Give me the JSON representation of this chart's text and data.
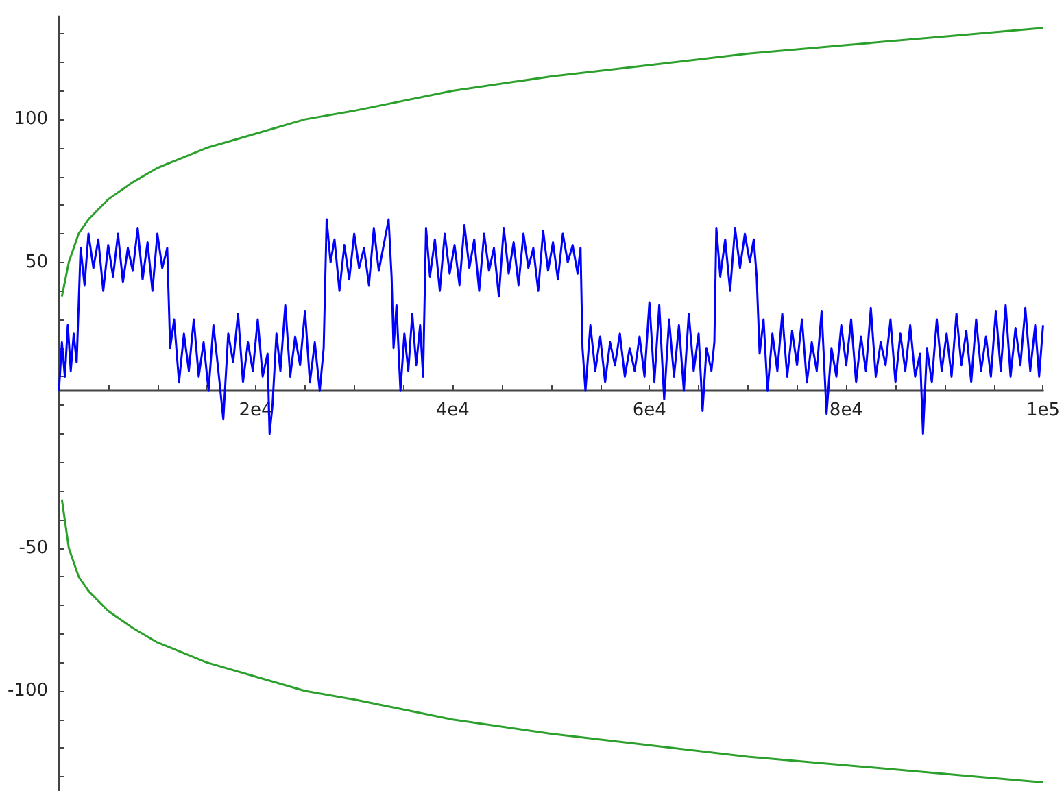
{
  "chart_data": {
    "type": "line",
    "marker": "none",
    "xlim": [
      0,
      100000
    ],
    "ylim": [
      -135,
      136
    ],
    "xticks": [
      {
        "value": 0,
        "label": null
      },
      {
        "value": 5000,
        "label": null
      },
      {
        "value": 10000,
        "label": null
      },
      {
        "value": 15000,
        "label": null
      },
      {
        "value": 20000,
        "label": "2e4"
      },
      {
        "value": 25000,
        "label": null
      },
      {
        "value": 30000,
        "label": null
      },
      {
        "value": 35000,
        "label": null
      },
      {
        "value": 40000,
        "label": "4e4"
      },
      {
        "value": 45000,
        "label": null
      },
      {
        "value": 50000,
        "label": null
      },
      {
        "value": 55000,
        "label": null
      },
      {
        "value": 60000,
        "label": "6e4"
      },
      {
        "value": 65000,
        "label": null
      },
      {
        "value": 70000,
        "label": null
      },
      {
        "value": 75000,
        "label": null
      },
      {
        "value": 80000,
        "label": "8e4"
      },
      {
        "value": 85000,
        "label": null
      },
      {
        "value": 90000,
        "label": null
      },
      {
        "value": 95000,
        "label": null
      },
      {
        "value": 100000,
        "label": "1e5"
      }
    ],
    "yticks": [
      {
        "value": -130,
        "label": null
      },
      {
        "value": -120,
        "label": null
      },
      {
        "value": -110,
        "label": null
      },
      -100,
      {
        "value": -90,
        "label": null
      },
      {
        "value": -80,
        "label": null
      },
      {
        "value": -70,
        "label": null
      },
      {
        "value": -60,
        "label": null
      },
      -50,
      {
        "value": -40,
        "label": null
      },
      {
        "value": -30,
        "label": null
      },
      {
        "value": -20,
        "label": null
      },
      {
        "value": -10,
        "label": null
      },
      {
        "value": 0,
        "label": null
      },
      {
        "value": 10,
        "label": null
      },
      {
        "value": 20,
        "label": null
      },
      {
        "value": 30,
        "label": null
      },
      {
        "value": 40,
        "label": null
      },
      50,
      {
        "value": 60,
        "label": null
      },
      {
        "value": 70,
        "label": null
      },
      {
        "value": 80,
        "label": null
      },
      {
        "value": 90,
        "label": null
      },
      100,
      {
        "value": 110,
        "label": null
      },
      {
        "value": 120,
        "label": null
      },
      {
        "value": 130,
        "label": null
      }
    ],
    "series": [
      {
        "color": "#0000ff",
        "x": [
          0,
          300,
          600,
          900,
          1200,
          1500,
          1800,
          2200,
          2600,
          3000,
          3500,
          4000,
          4500,
          5000,
          5500,
          6000,
          6500,
          7000,
          7500,
          8000,
          8500,
          9000,
          9500,
          10000,
          10500,
          11000,
          11300,
          11700,
          12200,
          12700,
          13200,
          13700,
          14200,
          14700,
          15200,
          15700,
          16200,
          16700,
          17200,
          17700,
          18200,
          18700,
          19200,
          19700,
          20200,
          20700,
          21200,
          21400,
          21700,
          22100,
          22500,
          23000,
          23500,
          24000,
          24500,
          25000,
          25500,
          26000,
          26500,
          26900,
          27200,
          27600,
          28000,
          28500,
          29000,
          29500,
          30000,
          30500,
          31000,
          31500,
          32000,
          32500,
          33000,
          33500,
          33800,
          34000,
          34300,
          34700,
          35100,
          35500,
          35900,
          36300,
          36700,
          37000,
          37300,
          37700,
          38200,
          38700,
          39200,
          39700,
          40200,
          40700,
          41200,
          41700,
          42200,
          42700,
          43200,
          43700,
          44200,
          44700,
          45200,
          45700,
          46200,
          46700,
          47200,
          47700,
          48200,
          48700,
          49200,
          49700,
          50200,
          50700,
          51200,
          51700,
          52200,
          52700,
          53000,
          53200,
          53500,
          54000,
          54500,
          55000,
          55500,
          56000,
          56500,
          57000,
          57500,
          58000,
          58500,
          59000,
          59500,
          60000,
          60500,
          61000,
          61500,
          62000,
          62500,
          63000,
          63500,
          64000,
          64500,
          65000,
          65400,
          65800,
          66300,
          66600,
          66800,
          67200,
          67700,
          68200,
          68700,
          69200,
          69700,
          70200,
          70600,
          70900,
          71200,
          71600,
          72000,
          72500,
          73000,
          73500,
          74000,
          74500,
          75000,
          75500,
          76000,
          76500,
          77000,
          77500,
          78000,
          78500,
          79000,
          79500,
          80000,
          80500,
          81000,
          81500,
          82000,
          82500,
          83000,
          83500,
          84000,
          84500,
          85000,
          85500,
          86000,
          86500,
          87000,
          87500,
          87800,
          88200,
          88700,
          89200,
          89700,
          90200,
          90700,
          91200,
          91700,
          92200,
          92700,
          93200,
          93700,
          94200,
          94700,
          95200,
          95700,
          96200,
          96700,
          97200,
          97700,
          98200,
          98700,
          99200,
          99600,
          100000
        ],
        "values": [
          5,
          22,
          10,
          28,
          12,
          25,
          15,
          55,
          42,
          60,
          48,
          58,
          40,
          56,
          45,
          60,
          43,
          55,
          47,
          62,
          44,
          57,
          40,
          60,
          48,
          55,
          20,
          30,
          8,
          25,
          12,
          30,
          10,
          22,
          5,
          28,
          12,
          -5,
          25,
          15,
          32,
          8,
          22,
          12,
          30,
          10,
          18,
          -10,
          0,
          25,
          12,
          35,
          10,
          24,
          14,
          33,
          8,
          22,
          5,
          20,
          65,
          50,
          58,
          40,
          56,
          44,
          60,
          48,
          55,
          42,
          62,
          47,
          56,
          65,
          45,
          20,
          35,
          5,
          25,
          12,
          32,
          14,
          28,
          10,
          62,
          45,
          58,
          40,
          60,
          46,
          56,
          42,
          63,
          48,
          58,
          40,
          60,
          47,
          55,
          38,
          62,
          46,
          57,
          42,
          60,
          48,
          55,
          40,
          61,
          47,
          57,
          44,
          60,
          50,
          56,
          46,
          55,
          20,
          5,
          28,
          12,
          24,
          8,
          22,
          14,
          25,
          10,
          20,
          12,
          24,
          10,
          36,
          8,
          35,
          2,
          30,
          10,
          28,
          5,
          32,
          12,
          25,
          -2,
          20,
          12,
          22,
          62,
          45,
          58,
          40,
          62,
          48,
          60,
          50,
          58,
          45,
          18,
          30,
          5,
          25,
          12,
          32,
          10,
          26,
          14,
          30,
          8,
          22,
          12,
          33,
          -3,
          20,
          10,
          28,
          14,
          30,
          8,
          24,
          12,
          34,
          10,
          22,
          14,
          30,
          8,
          25,
          12,
          28,
          10,
          18,
          -10,
          20,
          8,
          30,
          12,
          25,
          10,
          32,
          14,
          26,
          8,
          30,
          12,
          24,
          10,
          33,
          12,
          35,
          10,
          27,
          14,
          34,
          12,
          28,
          10,
          28
        ]
      },
      {
        "color": "#2ca02c",
        "x": [
          300,
          1000,
          2000,
          3000,
          5000,
          7500,
          10000,
          15000,
          20000,
          25000,
          30000,
          40000,
          50000,
          60000,
          70000,
          80000,
          90000,
          100000
        ],
        "values": [
          38,
          50,
          60,
          65,
          72,
          78,
          83,
          90,
          95,
          100,
          103,
          110,
          115,
          119,
          123,
          126,
          129,
          132
        ]
      },
      {
        "color": "#2ca02c",
        "x": [
          300,
          1000,
          2000,
          3000,
          5000,
          7500,
          10000,
          15000,
          20000,
          25000,
          30000,
          40000,
          50000,
          60000,
          70000,
          80000,
          90000,
          100000
        ],
        "values": [
          -33,
          -50,
          -60,
          -65,
          -72,
          -78,
          -83,
          -90,
          -95,
          -100,
          -103,
          -110,
          -115,
          -119,
          -123,
          -126,
          -129,
          -132
        ]
      }
    ]
  }
}
